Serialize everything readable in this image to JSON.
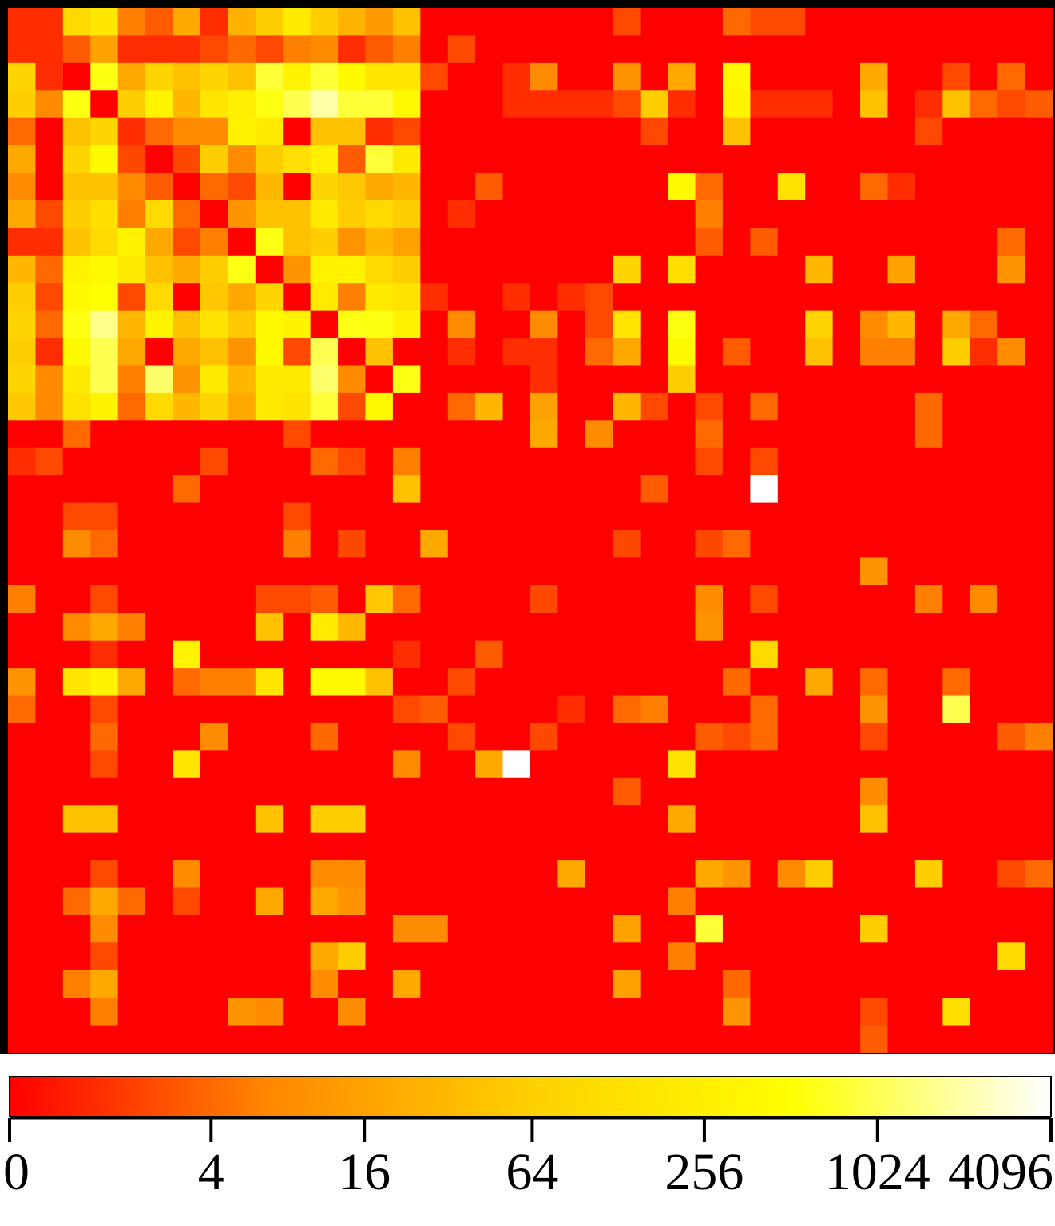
{
  "chart_data": {
    "type": "heatmap",
    "title": "",
    "xlabel": "",
    "ylabel": "",
    "rows": 38,
    "cols": 38,
    "scale": "log",
    "colormap": [
      "#ff0000",
      "#ff8800",
      "#ffd000",
      "#ffff00",
      "#ffffff"
    ],
    "colorbar": {
      "range": [
        0,
        4096
      ],
      "ticks": [
        0,
        4,
        16,
        64,
        256,
        1024,
        4096
      ],
      "tick_labels": [
        "0",
        "4",
        "16",
        "64",
        "256",
        "1024",
        "4096"
      ]
    },
    "values": [
      [
        1,
        1,
        100,
        180,
        6,
        3,
        20,
        1,
        25,
        60,
        200,
        60,
        28,
        12,
        40,
        0,
        0,
        0,
        0,
        0,
        0,
        0,
        2,
        0,
        0,
        0,
        4,
        2,
        2,
        0,
        0,
        0,
        0,
        0,
        0,
        0,
        0,
        0
      ],
      [
        1,
        1,
        3,
        16,
        1,
        1,
        1,
        2,
        4,
        2,
        6,
        8,
        1,
        3,
        6,
        0,
        2,
        0,
        0,
        0,
        0,
        0,
        0,
        0,
        0,
        0,
        0,
        0,
        0,
        0,
        0,
        0,
        0,
        0,
        0,
        0,
        0,
        0
      ],
      [
        80,
        1,
        0,
        600,
        20,
        80,
        40,
        80,
        40,
        800,
        300,
        800,
        400,
        160,
        180,
        2,
        0,
        0,
        1,
        8,
        0,
        0,
        10,
        0,
        20,
        0,
        400,
        0,
        0,
        0,
        0,
        20,
        0,
        0,
        2,
        0,
        4,
        0
      ],
      [
        60,
        8,
        600,
        0,
        60,
        300,
        30,
        160,
        250,
        600,
        1000,
        2000,
        800,
        800,
        400,
        0,
        0,
        0,
        1,
        1,
        1,
        1,
        2,
        60,
        1,
        0,
        300,
        1,
        1,
        1,
        0,
        40,
        0,
        1,
        40,
        4,
        2,
        3
      ],
      [
        4,
        0,
        40,
        80,
        1,
        4,
        8,
        8,
        300,
        200,
        0,
        40,
        40,
        1,
        2,
        0,
        0,
        0,
        0,
        0,
        0,
        0,
        0,
        2,
        0,
        0,
        40,
        0,
        0,
        0,
        0,
        0,
        0,
        2,
        0,
        0,
        0,
        0
      ],
      [
        20,
        0,
        80,
        400,
        2,
        0,
        2,
        60,
        8,
        60,
        120,
        250,
        3,
        800,
        200,
        0,
        0,
        0,
        0,
        0,
        0,
        0,
        0,
        0,
        0,
        0,
        0,
        0,
        0,
        0,
        0,
        0,
        0,
        0,
        0,
        0,
        0,
        0
      ],
      [
        8,
        0,
        40,
        40,
        8,
        3,
        0,
        4,
        2,
        30,
        0,
        80,
        50,
        20,
        30,
        0,
        0,
        3,
        0,
        0,
        0,
        0,
        0,
        0,
        400,
        4,
        0,
        0,
        150,
        0,
        0,
        4,
        1,
        0,
        0,
        0,
        0,
        0
      ],
      [
        20,
        2,
        60,
        120,
        6,
        100,
        4,
        0,
        10,
        40,
        40,
        200,
        60,
        100,
        60,
        0,
        1,
        0,
        0,
        0,
        0,
        0,
        0,
        0,
        0,
        6,
        0,
        0,
        0,
        0,
        0,
        0,
        0,
        0,
        0,
        0,
        0,
        0
      ],
      [
        1,
        1,
        40,
        100,
        300,
        20,
        2,
        6,
        0,
        600,
        40,
        60,
        10,
        30,
        16,
        0,
        0,
        0,
        0,
        0,
        0,
        0,
        0,
        0,
        0,
        3,
        0,
        3,
        0,
        0,
        0,
        0,
        0,
        0,
        0,
        0,
        4,
        0
      ],
      [
        30,
        4,
        300,
        400,
        200,
        40,
        20,
        60,
        600,
        0,
        10,
        300,
        300,
        100,
        60,
        0,
        0,
        0,
        0,
        0,
        0,
        0,
        80,
        0,
        120,
        0,
        0,
        0,
        0,
        30,
        0,
        0,
        16,
        0,
        0,
        0,
        10,
        0
      ],
      [
        60,
        2,
        400,
        500,
        2,
        100,
        0,
        50,
        20,
        80,
        0,
        200,
        6,
        200,
        150,
        1,
        0,
        0,
        1,
        0,
        1,
        2,
        0,
        0,
        0,
        0,
        0,
        0,
        0,
        0,
        0,
        0,
        0,
        0,
        0,
        0,
        0,
        0
      ],
      [
        80,
        4,
        600,
        1600,
        30,
        300,
        40,
        150,
        50,
        400,
        300,
        0,
        600,
        600,
        300,
        0,
        8,
        0,
        0,
        8,
        0,
        2,
        160,
        0,
        600,
        0,
        0,
        0,
        0,
        80,
        0,
        8,
        30,
        0,
        20,
        4,
        0,
        0
      ],
      [
        60,
        1,
        400,
        1000,
        20,
        0,
        20,
        40,
        10,
        400,
        2,
        1000,
        0,
        40,
        0,
        0,
        1,
        0,
        1,
        1,
        0,
        4,
        20,
        0,
        400,
        0,
        3,
        0,
        0,
        40,
        0,
        6,
        6,
        0,
        60,
        1,
        8,
        0
      ],
      [
        80,
        8,
        200,
        1000,
        6,
        1200,
        10,
        200,
        30,
        200,
        200,
        1200,
        8,
        0,
        600,
        0,
        0,
        0,
        0,
        1,
        0,
        0,
        0,
        0,
        60,
        0,
        0,
        0,
        0,
        0,
        0,
        0,
        0,
        0,
        0,
        0,
        0,
        0
      ],
      [
        50,
        8,
        150,
        300,
        4,
        100,
        30,
        80,
        20,
        200,
        150,
        800,
        2,
        400,
        0,
        0,
        4,
        30,
        0,
        16,
        0,
        0,
        30,
        2,
        0,
        2,
        0,
        4,
        0,
        0,
        0,
        0,
        0,
        4,
        0,
        0,
        0,
        0
      ],
      [
        0,
        0,
        4,
        0,
        0,
        0,
        0,
        0,
        0,
        0,
        2,
        0,
        0,
        0,
        0,
        0,
        0,
        0,
        0,
        20,
        0,
        8,
        0,
        0,
        0,
        4,
        0,
        0,
        0,
        0,
        0,
        0,
        0,
        4,
        0,
        0,
        0,
        0
      ],
      [
        1,
        2,
        0,
        0,
        0,
        0,
        0,
        2,
        0,
        0,
        0,
        4,
        2,
        0,
        6,
        0,
        0,
        0,
        0,
        0,
        0,
        0,
        0,
        0,
        0,
        2,
        0,
        2,
        0,
        0,
        0,
        0,
        0,
        0,
        0,
        0,
        0,
        0
      ],
      [
        0,
        0,
        0,
        0,
        0,
        0,
        4,
        0,
        0,
        0,
        0,
        0,
        0,
        0,
        40,
        0,
        0,
        0,
        0,
        0,
        0,
        0,
        0,
        3,
        0,
        0,
        0,
        4096,
        0,
        0,
        0,
        0,
        0,
        0,
        0,
        0,
        0,
        0
      ],
      [
        0,
        0,
        2,
        2,
        0,
        0,
        0,
        0,
        0,
        0,
        2,
        0,
        0,
        0,
        0,
        0,
        0,
        0,
        0,
        0,
        0,
        0,
        0,
        0,
        0,
        0,
        0,
        0,
        0,
        0,
        0,
        0,
        0,
        0,
        0,
        0,
        0,
        0
      ],
      [
        0,
        0,
        8,
        4,
        0,
        0,
        0,
        0,
        0,
        0,
        6,
        0,
        2,
        0,
        0,
        20,
        0,
        0,
        0,
        0,
        0,
        0,
        2,
        0,
        0,
        2,
        4,
        0,
        0,
        0,
        0,
        0,
        0,
        0,
        0,
        0,
        0,
        0
      ],
      [
        0,
        0,
        0,
        0,
        0,
        0,
        0,
        0,
        0,
        0,
        0,
        0,
        0,
        0,
        0,
        0,
        0,
        0,
        0,
        0,
        0,
        0,
        0,
        0,
        0,
        0,
        0,
        0,
        0,
        0,
        0,
        10,
        0,
        0,
        0,
        0,
        0,
        0
      ],
      [
        6,
        0,
        0,
        2,
        0,
        0,
        0,
        0,
        0,
        2,
        2,
        3,
        0,
        50,
        4,
        0,
        0,
        0,
        0,
        2,
        0,
        0,
        0,
        0,
        0,
        8,
        0,
        2,
        0,
        0,
        0,
        0,
        0,
        6,
        0,
        8,
        0,
        0
      ],
      [
        0,
        0,
        8,
        20,
        6,
        0,
        0,
        0,
        0,
        40,
        0,
        200,
        30,
        0,
        0,
        0,
        0,
        0,
        0,
        0,
        0,
        0,
        0,
        0,
        0,
        10,
        0,
        0,
        0,
        0,
        0,
        0,
        0,
        0,
        0,
        0,
        0,
        0
      ],
      [
        0,
        0,
        0,
        1,
        0,
        0,
        300,
        0,
        0,
        0,
        0,
        0,
        0,
        0,
        1,
        0,
        0,
        3,
        0,
        0,
        0,
        0,
        0,
        0,
        0,
        0,
        0,
        100,
        0,
        0,
        0,
        0,
        0,
        0,
        0,
        0,
        0,
        0
      ],
      [
        10,
        0,
        160,
        300,
        20,
        0,
        4,
        6,
        6,
        160,
        0,
        400,
        400,
        40,
        0,
        0,
        2,
        0,
        0,
        0,
        0,
        0,
        0,
        0,
        0,
        0,
        4,
        0,
        0,
        20,
        0,
        4,
        0,
        0,
        4,
        0,
        0,
        0
      ],
      [
        4,
        0,
        0,
        2,
        0,
        0,
        0,
        0,
        0,
        0,
        0,
        0,
        0,
        0,
        2,
        3,
        0,
        0,
        0,
        0,
        1,
        0,
        4,
        6,
        0,
        0,
        0,
        4,
        0,
        0,
        0,
        10,
        0,
        0,
        1000,
        0,
        0,
        0
      ],
      [
        0,
        0,
        0,
        4,
        0,
        0,
        0,
        8,
        0,
        0,
        0,
        4,
        0,
        0,
        0,
        0,
        2,
        0,
        0,
        2,
        0,
        0,
        0,
        0,
        0,
        3,
        2,
        4,
        0,
        0,
        0,
        2,
        0,
        0,
        0,
        0,
        3,
        6
      ],
      [
        0,
        0,
        0,
        2,
        0,
        0,
        160,
        0,
        0,
        0,
        0,
        0,
        0,
        0,
        8,
        0,
        0,
        20,
        4096,
        0,
        0,
        0,
        0,
        0,
        150,
        0,
        0,
        0,
        0,
        0,
        0,
        0,
        0,
        0,
        0,
        0,
        0,
        0
      ],
      [
        0,
        0,
        0,
        0,
        0,
        0,
        0,
        0,
        0,
        0,
        0,
        0,
        0,
        0,
        0,
        0,
        0,
        0,
        0,
        0,
        0,
        0,
        3,
        0,
        0,
        0,
        0,
        0,
        0,
        0,
        0,
        8,
        0,
        0,
        0,
        0,
        0,
        0
      ],
      [
        0,
        0,
        40,
        40,
        0,
        0,
        0,
        0,
        0,
        40,
        0,
        60,
        60,
        0,
        0,
        0,
        0,
        0,
        0,
        0,
        0,
        0,
        0,
        0,
        20,
        0,
        0,
        0,
        0,
        0,
        0,
        40,
        0,
        0,
        0,
        0,
        0,
        0
      ],
      [
        0,
        0,
        0,
        0,
        0,
        0,
        0,
        0,
        0,
        0,
        0,
        0,
        0,
        0,
        0,
        0,
        0,
        0,
        0,
        0,
        0,
        0,
        0,
        0,
        0,
        0,
        0,
        0,
        0,
        0,
        0,
        0,
        0,
        0,
        0,
        0,
        0,
        0
      ],
      [
        0,
        0,
        0,
        2,
        0,
        0,
        8,
        0,
        0,
        0,
        0,
        8,
        8,
        0,
        0,
        0,
        0,
        0,
        0,
        0,
        20,
        0,
        0,
        0,
        0,
        20,
        10,
        0,
        8,
        60,
        0,
        0,
        0,
        60,
        0,
        0,
        2,
        4
      ],
      [
        0,
        0,
        4,
        20,
        4,
        0,
        2,
        0,
        0,
        20,
        0,
        20,
        10,
        0,
        0,
        0,
        0,
        0,
        0,
        0,
        0,
        0,
        0,
        0,
        6,
        0,
        0,
        0,
        0,
        0,
        0,
        0,
        0,
        0,
        0,
        0,
        0,
        0
      ],
      [
        0,
        0,
        0,
        8,
        0,
        0,
        0,
        0,
        0,
        0,
        0,
        0,
        0,
        0,
        8,
        8,
        0,
        0,
        0,
        0,
        0,
        0,
        16,
        0,
        0,
        800,
        0,
        0,
        0,
        0,
        0,
        60,
        0,
        0,
        0,
        0,
        0,
        0
      ],
      [
        0,
        0,
        0,
        2,
        0,
        0,
        0,
        0,
        0,
        0,
        0,
        20,
        60,
        0,
        0,
        0,
        0,
        0,
        0,
        0,
        0,
        0,
        0,
        0,
        6,
        0,
        0,
        0,
        0,
        0,
        0,
        0,
        0,
        0,
        0,
        0,
        100,
        0
      ],
      [
        0,
        0,
        6,
        20,
        0,
        0,
        0,
        0,
        0,
        0,
        0,
        8,
        0,
        0,
        20,
        0,
        0,
        0,
        0,
        0,
        0,
        0,
        16,
        0,
        0,
        0,
        4,
        0,
        0,
        0,
        0,
        0,
        0,
        0,
        0,
        0,
        0,
        0
      ],
      [
        0,
        0,
        0,
        6,
        0,
        0,
        0,
        0,
        10,
        8,
        0,
        0,
        8,
        0,
        0,
        0,
        0,
        0,
        0,
        0,
        0,
        0,
        0,
        0,
        0,
        0,
        10,
        0,
        0,
        0,
        0,
        2,
        0,
        0,
        120,
        0,
        0,
        0
      ],
      [
        0,
        0,
        0,
        0,
        0,
        0,
        0,
        0,
        0,
        0,
        0,
        0,
        0,
        0,
        0,
        0,
        0,
        0,
        0,
        0,
        0,
        0,
        0,
        0,
        0,
        0,
        0,
        0,
        0,
        0,
        0,
        3,
        0,
        0,
        0,
        0,
        0,
        0
      ]
    ]
  }
}
